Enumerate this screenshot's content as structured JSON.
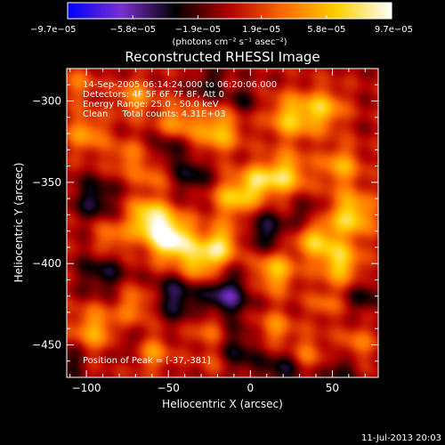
{
  "chart_data": {
    "type": "heatmap",
    "title": "Reconstructed RHESSI Image",
    "xlabel": "Heliocentric X (arcsec)",
    "ylabel": "Heliocentric Y (arcsec)",
    "xlim": [
      -112,
      78
    ],
    "ylim": [
      -470,
      -280
    ],
    "x_ticks": [
      -100,
      -50,
      0,
      50
    ],
    "x_tick_labels": [
      "−100",
      "−50",
      "0",
      "50"
    ],
    "y_ticks": [
      -300,
      -350,
      -400,
      -450
    ],
    "y_tick_labels": [
      "−300",
      "−350",
      "−400",
      "−450"
    ],
    "colorbar": {
      "range": [
        -9.7e-05,
        9.7e-05
      ],
      "ticks": [
        -9.7e-05,
        -5.8e-05,
        -1.9e-05,
        1.9e-05,
        5.8e-05,
        9.7e-05
      ],
      "tick_labels": [
        "−9.7e−05",
        "−5.8e−05",
        "−1.9e−05",
        "1.9e−05",
        "5.8e−05",
        "9.7e−05"
      ],
      "unit_label": "(photons cm⁻² s⁻¹ asec⁻²)",
      "colors": [
        "#0000ff",
        "#7a2fd0",
        "#000000",
        "#b30000",
        "#ff6a00",
        "#ffd000",
        "#ffffff"
      ]
    },
    "annotations": [
      "14-Sep-2005 06:14:24.000 to 06:20:06.000",
      "Detectors: 4F 5F 6F 7F 8F, Att 0",
      "Energy Range: 25.0 - 50.0 keV",
      "Clean     Total counts: 4.31E+03"
    ],
    "peak_label": "Position of Peak = [-37,-381]",
    "peak": [
      -37,
      -381
    ],
    "blobs": [
      {
        "x": -48,
        "y": -385,
        "s": 10,
        "v": 9.5e-05
      },
      {
        "x": -62,
        "y": -372,
        "s": 9,
        "v": 7.5e-05
      },
      {
        "x": -30,
        "y": -400,
        "s": 9,
        "v": 6e-05
      },
      {
        "x": -18,
        "y": -388,
        "s": 8,
        "v": 6.5e-05
      },
      {
        "x": -10,
        "y": -360,
        "s": 9,
        "v": 6e-05
      },
      {
        "x": 5,
        "y": -350,
        "s": 8,
        "v": 6e-05
      },
      {
        "x": 22,
        "y": -345,
        "s": 9,
        "v": 6.5e-05
      },
      {
        "x": 25,
        "y": -310,
        "s": 10,
        "v": 6e-05
      },
      {
        "x": 45,
        "y": -305,
        "s": 9,
        "v": 5.5e-05
      },
      {
        "x": 55,
        "y": -340,
        "s": 9,
        "v": 5e-05
      },
      {
        "x": 62,
        "y": -370,
        "s": 10,
        "v": 7e-05
      },
      {
        "x": 40,
        "y": -385,
        "s": 9,
        "v": 6e-05
      },
      {
        "x": 15,
        "y": -405,
        "s": 9,
        "v": 6e-05
      },
      {
        "x": 55,
        "y": -400,
        "s": 9,
        "v": 6.5e-05
      },
      {
        "x": -20,
        "y": -318,
        "s": 10,
        "v": 6e-05
      },
      {
        "x": -45,
        "y": -312,
        "s": 8,
        "v": 4.5e-05
      },
      {
        "x": -70,
        "y": -298,
        "s": 8,
        "v": 4.5e-05
      },
      {
        "x": -75,
        "y": -335,
        "s": 8,
        "v": 3.5e-05
      },
      {
        "x": -100,
        "y": -320,
        "s": 9,
        "v": 4.5e-05
      },
      {
        "x": -105,
        "y": -290,
        "s": 8,
        "v": 3e-05
      },
      {
        "x": -95,
        "y": -440,
        "s": 10,
        "v": 5e-05
      },
      {
        "x": -70,
        "y": -425,
        "s": 8,
        "v": 4e-05
      },
      {
        "x": -60,
        "y": -455,
        "s": 8,
        "v": 4e-05
      },
      {
        "x": -25,
        "y": -440,
        "s": 8,
        "v": 3.5e-05
      },
      {
        "x": -20,
        "y": -460,
        "s": 8,
        "v": 3e-05
      },
      {
        "x": 15,
        "y": -440,
        "s": 8,
        "v": 4e-05
      },
      {
        "x": 35,
        "y": -455,
        "s": 8,
        "v": 3.5e-05
      },
      {
        "x": 65,
        "y": -450,
        "s": 8,
        "v": 3.5e-05
      },
      {
        "x": 45,
        "y": -425,
        "s": 7,
        "v": 3e-05
      },
      {
        "x": -85,
        "y": -385,
        "s": 8,
        "v": 4e-05
      },
      {
        "x": -60,
        "y": -345,
        "s": 7,
        "v": 3e-05
      },
      {
        "x": -95,
        "y": -360,
        "s": 9,
        "v": -4e-05
      },
      {
        "x": -90,
        "y": -405,
        "s": 10,
        "v": -3.5e-05
      },
      {
        "x": -45,
        "y": -420,
        "s": 10,
        "v": -4.5e-05
      },
      {
        "x": -15,
        "y": -420,
        "s": 10,
        "v": -5.5e-05
      },
      {
        "x": 10,
        "y": -380,
        "s": 9,
        "v": -4e-05
      },
      {
        "x": -35,
        "y": -345,
        "s": 8,
        "v": -3.5e-05
      },
      {
        "x": -50,
        "y": -330,
        "s": 7,
        "v": -3e-05
      },
      {
        "x": -10,
        "y": -455,
        "s": 10,
        "v": -4e-05
      },
      {
        "x": 20,
        "y": -465,
        "s": 9,
        "v": -3.5e-05
      },
      {
        "x": 55,
        "y": -465,
        "s": 8,
        "v": -3e-05
      },
      {
        "x": 35,
        "y": -370,
        "s": 7,
        "v": -3e-05
      },
      {
        "x": -25,
        "y": -290,
        "s": 7,
        "v": -3e-05
      },
      {
        "x": -5,
        "y": -300,
        "s": 7,
        "v": -2.5e-05
      },
      {
        "x": -110,
        "y": -460,
        "s": 7,
        "v": -3e-05
      },
      {
        "x": 70,
        "y": -420,
        "s": 7,
        "v": -3e-05
      },
      {
        "x": -75,
        "y": -450,
        "s": 6,
        "v": -2.5e-05
      }
    ]
  },
  "footer": {
    "timestamp": "11-Jul-2013 20:03"
  }
}
